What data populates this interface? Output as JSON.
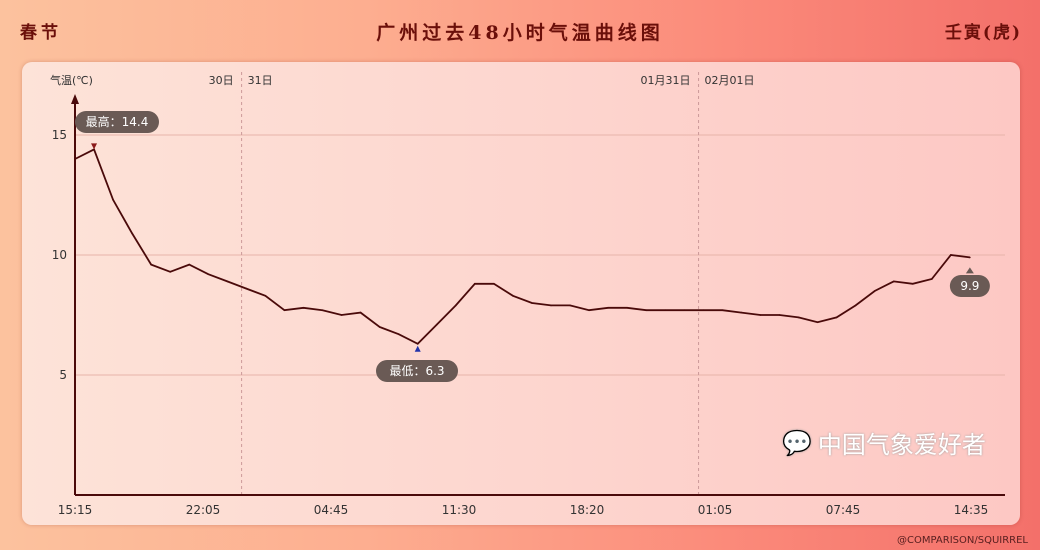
{
  "header": {
    "left": "春节",
    "title": "广州过去48小时气温曲线图",
    "right": "壬寅(虎)"
  },
  "watermark": "中国气象爱好者",
  "credit": "@COMPARISON/SQUIRREL",
  "chart_data": {
    "type": "line",
    "title": "广州过去48小时气温曲线图",
    "ylabel": "气温(℃)",
    "ylim": [
      0,
      17
    ],
    "yticks": [
      5,
      10,
      15
    ],
    "xticks": [
      "15:15",
      "22:05",
      "04:45",
      "11:30",
      "18:20",
      "01:05",
      "07:45",
      "14:35"
    ],
    "date_markers": [
      {
        "left": "30日",
        "right": "31日",
        "time": "00:00"
      },
      {
        "left": "01月31日",
        "right": "02月01日",
        "time": "00:00"
      }
    ],
    "grid": true,
    "line_color": "#4a0a0a",
    "x": [
      "15:15",
      "16:15",
      "17:15",
      "18:15",
      "19:15",
      "20:15",
      "21:15",
      "22:15",
      "23:15",
      "00:15",
      "01:15",
      "02:15",
      "03:15",
      "04:15",
      "05:15",
      "06:15",
      "07:15",
      "08:15",
      "09:15",
      "10:15",
      "11:15",
      "12:15",
      "13:15",
      "14:15",
      "15:15",
      "16:15",
      "17:15",
      "18:15",
      "19:15",
      "20:15",
      "21:15",
      "22:15",
      "23:15",
      "00:15",
      "01:15",
      "02:15",
      "03:15",
      "04:15",
      "05:15",
      "06:15",
      "07:15",
      "08:15",
      "09:15",
      "10:15",
      "11:15",
      "12:15",
      "13:15",
      "14:15"
    ],
    "values": [
      14.0,
      14.4,
      12.3,
      10.9,
      9.6,
      9.3,
      9.6,
      9.2,
      8.9,
      8.6,
      8.3,
      7.7,
      7.8,
      7.7,
      7.5,
      7.6,
      7.0,
      6.7,
      6.3,
      7.1,
      7.9,
      8.8,
      8.8,
      8.3,
      8.0,
      7.9,
      7.9,
      7.7,
      7.8,
      7.8,
      7.7,
      7.7,
      7.7,
      7.7,
      7.7,
      7.6,
      7.5,
      7.5,
      7.4,
      7.2,
      7.4,
      7.9,
      8.5,
      8.9,
      8.8,
      9.0,
      10.0,
      9.9
    ],
    "annotations": {
      "max_label": "最高：14.4",
      "min_label": "最低：6.3",
      "last_label": "9.9"
    }
  }
}
